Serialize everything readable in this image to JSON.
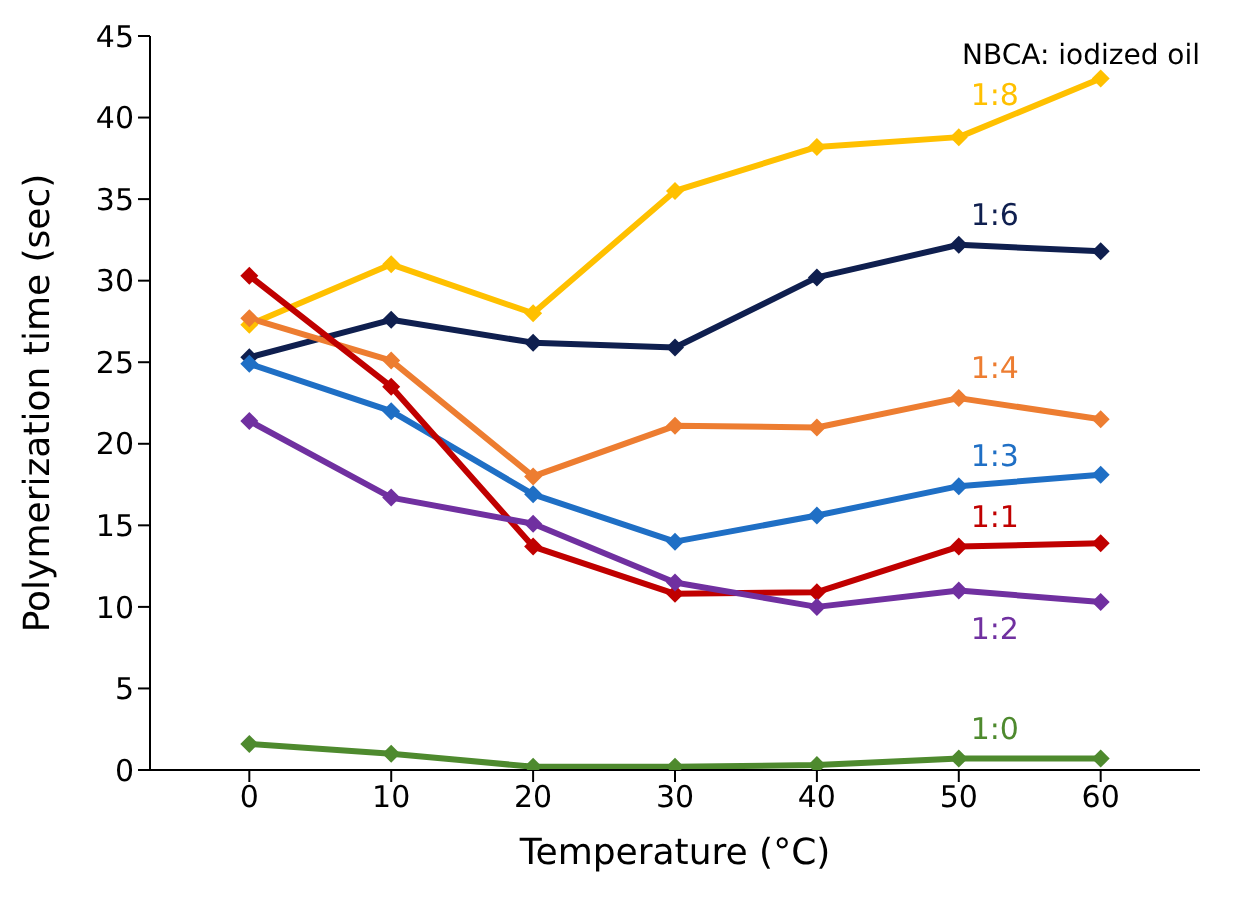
{
  "chart_data": {
    "type": "line",
    "xlabel": "Temperature (°C)",
    "ylabel": "Polymerization time (sec)",
    "legend_title": "NBCA: iodized oil",
    "x": [
      0,
      10,
      20,
      30,
      40,
      50,
      60
    ],
    "xlim": [
      -7,
      67
    ],
    "xticks": [
      0,
      10,
      20,
      30,
      40,
      50,
      60
    ],
    "ylim": [
      0,
      45
    ],
    "yticks": [
      0,
      5,
      10,
      15,
      20,
      25,
      30,
      35,
      40,
      45
    ],
    "grid": false,
    "marker": "diamond",
    "line_style": "solid",
    "series": [
      {
        "name": "1:8",
        "color": "#ffc000",
        "values": [
          27.3,
          31.0,
          28.0,
          35.5,
          38.2,
          38.8,
          42.4
        ]
      },
      {
        "name": "1:6",
        "color": "#0f1f4f",
        "values": [
          25.3,
          27.6,
          26.2,
          25.9,
          30.2,
          32.2,
          31.8
        ]
      },
      {
        "name": "1:4",
        "color": "#ed7d31",
        "values": [
          27.7,
          25.1,
          18.0,
          21.1,
          21.0,
          22.8,
          21.5
        ]
      },
      {
        "name": "1:3",
        "color": "#1f6fc5",
        "values": [
          24.9,
          22.0,
          16.9,
          14.0,
          15.6,
          17.4,
          18.1
        ]
      },
      {
        "name": "1:1",
        "color": "#c00000",
        "values": [
          30.3,
          23.5,
          13.7,
          10.8,
          10.9,
          13.7,
          13.9
        ]
      },
      {
        "name": "1:2",
        "color": "#7030a0",
        "values": [
          21.4,
          16.7,
          15.1,
          11.5,
          10.0,
          11.0,
          10.3
        ]
      },
      {
        "name": "1:0",
        "color": "#4e8a2e",
        "values": [
          1.6,
          1.0,
          0.2,
          0.2,
          0.3,
          0.7,
          0.7
        ]
      }
    ]
  }
}
